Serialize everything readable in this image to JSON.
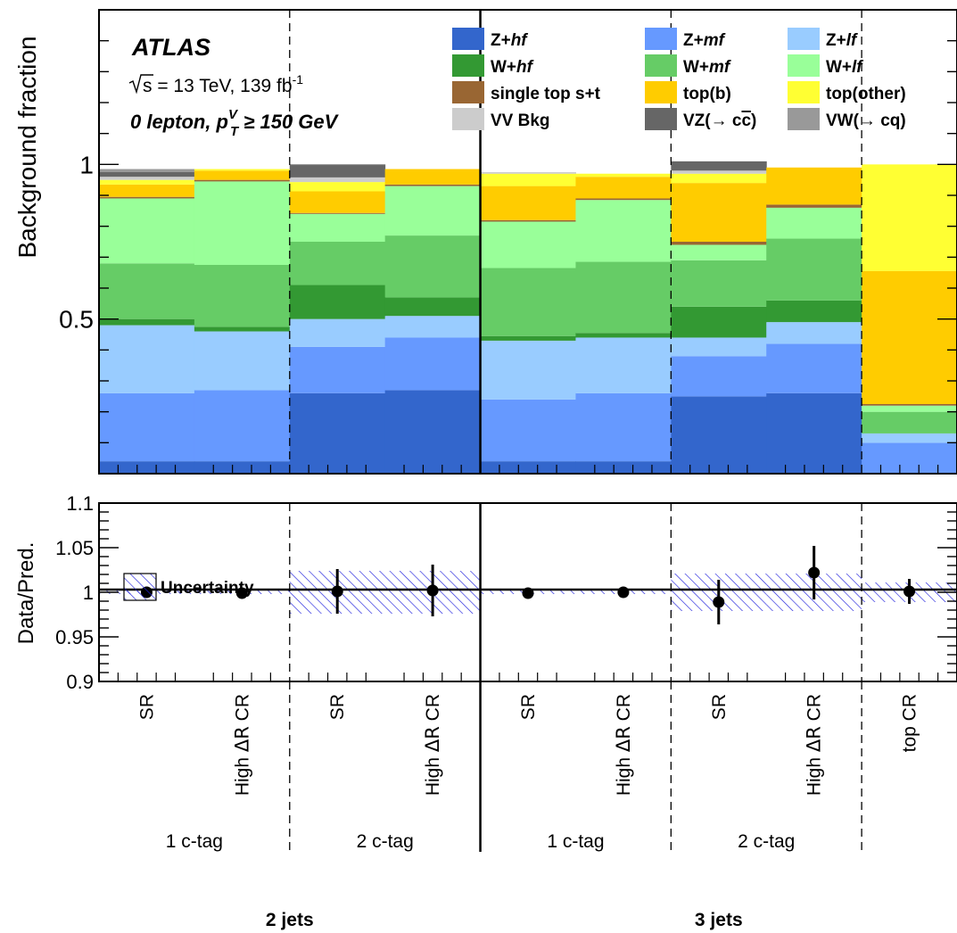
{
  "chart_data": {
    "type": "bar",
    "stacked": true,
    "experiment": "ATLAS",
    "energy_line": {
      "pre": "s",
      "text": " = 13 TeV, 139 fb",
      "sup": "-1"
    },
    "selection": {
      "prefix": "0 lepton, p",
      "sub": "T",
      "sup": "V",
      "suffix": " ≥ 150 GeV"
    },
    "upper": {
      "ylabel": "Background fraction",
      "ylim": [
        0,
        1.5
      ],
      "yticks": [
        {
          "v": 0.5,
          "label": "0.5"
        },
        {
          "v": 1,
          "label": "1"
        }
      ],
      "minor_step": 0.1,
      "bins": [
        "2j-1c-SR",
        "2j-1c-HighdR",
        "2j-2c-SR",
        "2j-2c-HighdR",
        "3j-1c-SR",
        "3j-1c-HighdR",
        "3j-2c-SR",
        "3j-2c-HighdR",
        "topCR"
      ],
      "series": [
        {
          "name": "Z+hf",
          "legend": [
            {
              "t": "Z+"
            },
            {
              "t": "hf",
              "i": true
            }
          ],
          "color": "#3366CC",
          "values": [
            0.04,
            0.04,
            0.26,
            0.27,
            0.04,
            0.04,
            0.25,
            0.26,
            0.0
          ]
        },
        {
          "name": "Z+mf",
          "legend": [
            {
              "t": "Z+"
            },
            {
              "t": "mf",
              "i": true
            }
          ],
          "color": "#6699FF",
          "values": [
            0.22,
            0.23,
            0.15,
            0.17,
            0.2,
            0.22,
            0.13,
            0.16,
            0.1
          ]
        },
        {
          "name": "Z+lf",
          "legend": [
            {
              "t": "Z+"
            },
            {
              "t": "lf",
              "i": true
            }
          ],
          "color": "#99CCFF",
          "values": [
            0.22,
            0.19,
            0.09,
            0.07,
            0.19,
            0.18,
            0.06,
            0.07,
            0.03
          ]
        },
        {
          "name": "W+hf",
          "legend": [
            {
              "t": "W+"
            },
            {
              "t": "hf",
              "i": true
            }
          ],
          "color": "#339933",
          "values": [
            0.02,
            0.015,
            0.11,
            0.06,
            0.015,
            0.015,
            0.1,
            0.07,
            0.0
          ]
        },
        {
          "name": "W+mf",
          "legend": [
            {
              "t": "W+"
            },
            {
              "t": "mf",
              "i": true
            }
          ],
          "color": "#66CC66",
          "values": [
            0.18,
            0.2,
            0.14,
            0.2,
            0.22,
            0.23,
            0.15,
            0.2,
            0.07
          ]
        },
        {
          "name": "W+lf",
          "legend": [
            {
              "t": "W+"
            },
            {
              "t": "lf",
              "i": true
            }
          ],
          "color": "#99FF99",
          "values": [
            0.21,
            0.27,
            0.09,
            0.16,
            0.15,
            0.2,
            0.05,
            0.1,
            0.02
          ]
        },
        {
          "name": "single top s+t",
          "legend": [
            {
              "t": "single top s+t"
            }
          ],
          "color": "#996633",
          "values": [
            0.005,
            0.005,
            0.003,
            0.005,
            0.005,
            0.005,
            0.01,
            0.01,
            0.005
          ]
        },
        {
          "name": "top(b)",
          "legend": [
            {
              "t": "top(b)"
            }
          ],
          "color": "#FFCC00",
          "values": [
            0.04,
            0.03,
            0.07,
            0.05,
            0.11,
            0.07,
            0.19,
            0.12,
            0.43
          ]
        },
        {
          "name": "top(other)",
          "legend": [
            {
              "t": "top(other)"
            }
          ],
          "color": "#FFFF33",
          "values": [
            0.015,
            0.005,
            0.03,
            0.0,
            0.04,
            0.01,
            0.03,
            0.0,
            0.345
          ]
        },
        {
          "name": "VV Bkg",
          "legend": [
            {
              "t": "VV Bkg"
            }
          ],
          "color": "#CCCCCC",
          "values": [
            0.01,
            0.0,
            0.015,
            0.0,
            0.005,
            0.0,
            0.01,
            0.0,
            0.0
          ]
        },
        {
          "name": "VZ(→ cc̄)",
          "legend": [
            {
              "t": "VZ(→ c"
            },
            {
              "t": "c",
              "o": true
            },
            {
              "t": ")"
            }
          ],
          "color": "#666666",
          "values": [
            0.015,
            0.0,
            0.04,
            0.0,
            0.0,
            0.0,
            0.03,
            0.0,
            0.0
          ]
        },
        {
          "name": "VW(→ cq)",
          "legend": [
            {
              "t": "VW(→ cq)"
            }
          ],
          "color": "#999999",
          "values": [
            0.01,
            0.0,
            0.003,
            0.0,
            0.0,
            0.0,
            0.0,
            0.0,
            0.0
          ]
        }
      ]
    },
    "ratio": {
      "ylabel": "Data/Pred.",
      "ylim": [
        0.9,
        1.1
      ],
      "yticks": [
        {
          "v": 0.9,
          "label": "0.9"
        },
        {
          "v": 0.95,
          "label": "0.95"
        },
        {
          "v": 1.0,
          "label": "1"
        },
        {
          "v": 1.05,
          "label": "1.05"
        },
        {
          "v": 1.1,
          "label": "1.1"
        }
      ],
      "minor_step": 0.01,
      "points": [
        1.0,
        0.999,
        1.001,
        1.002,
        0.999,
        1.0,
        0.989,
        1.022,
        1.001
      ],
      "errors": [
        0.002,
        0.002,
        0.025,
        0.029,
        0.002,
        0.002,
        0.025,
        0.03,
        0.014
      ],
      "band": [
        0.002,
        0.002,
        0.024,
        0.024,
        0.002,
        0.002,
        0.021,
        0.021,
        0.011
      ],
      "legend": "Uncertainty"
    },
    "bin_labels": [
      [
        {
          "t": "SR"
        }
      ],
      [
        {
          "t": "High "
        },
        {
          "t": "ΔR",
          "sym": true
        },
        {
          "t": " CR"
        }
      ],
      [
        {
          "t": "SR"
        }
      ],
      [
        {
          "t": "High "
        },
        {
          "t": "ΔR",
          "sym": true
        },
        {
          "t": " CR"
        }
      ],
      [
        {
          "t": "SR"
        }
      ],
      [
        {
          "t": "High "
        },
        {
          "t": "ΔR",
          "sym": true
        },
        {
          "t": " CR"
        }
      ],
      [
        {
          "t": "SR"
        }
      ],
      [
        {
          "t": "High "
        },
        {
          "t": "ΔR",
          "sym": true
        },
        {
          "t": " CR"
        }
      ],
      [
        {
          "t": "top CR"
        }
      ]
    ],
    "tag_labels": [
      "1 c-tag",
      "2 c-tag",
      "1 c-tag",
      "2 c-tag"
    ],
    "jet_labels": [
      "2 jets",
      "3 jets"
    ]
  }
}
